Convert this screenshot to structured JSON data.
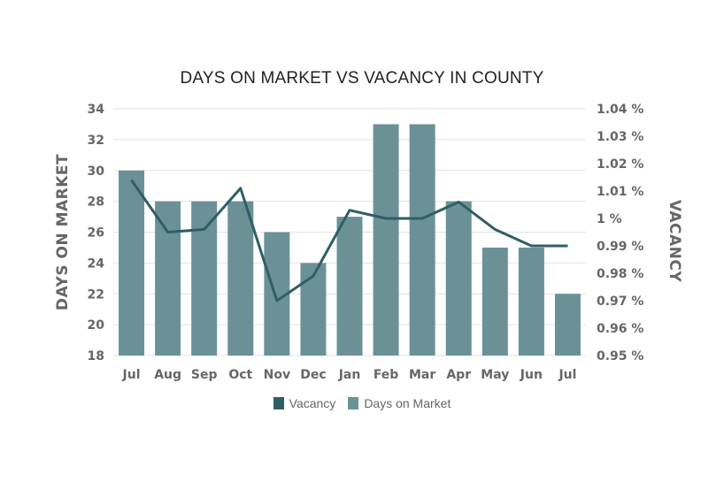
{
  "chart_data": {
    "type": "bar",
    "title": "DAYS ON MARKET VS VACANCY IN COUNTY",
    "categories": [
      "Jul",
      "Aug",
      "Sep",
      "Oct",
      "Nov",
      "Dec",
      "Jan",
      "Feb",
      "Mar",
      "Apr",
      "May",
      "Jun",
      "Jul"
    ],
    "series": [
      {
        "name": "Days on Market",
        "type": "bar",
        "axis": "left",
        "color": "#6b9197",
        "values": [
          30,
          28,
          28,
          28,
          26,
          24,
          27,
          33,
          33,
          28,
          25,
          25,
          22
        ]
      },
      {
        "name": "Vacancy",
        "type": "line",
        "axis": "right",
        "color": "#2e5f65",
        "values": [
          1.014,
          0.995,
          0.996,
          1.011,
          0.97,
          0.979,
          1.003,
          1.0,
          1.0,
          1.006,
          0.996,
          0.99,
          0.99
        ]
      }
    ],
    "ylabel": "DAYS ON MARKET",
    "ylabel_right": "VACANCY",
    "ylim": [
      18,
      34
    ],
    "yticks": [
      "18",
      "20",
      "22",
      "24",
      "26",
      "28",
      "30",
      "32",
      "34"
    ],
    "ylim_right": [
      0.95,
      1.04
    ],
    "yticks_right": [
      "0.95 %",
      "0.96 %",
      "0.97 %",
      "0.98 %",
      "0.99 %",
      "1 %",
      "1.01 %",
      "1.02 %",
      "1.03 %",
      "1.04 %"
    ],
    "grid": true,
    "legend_position": "bottom"
  }
}
